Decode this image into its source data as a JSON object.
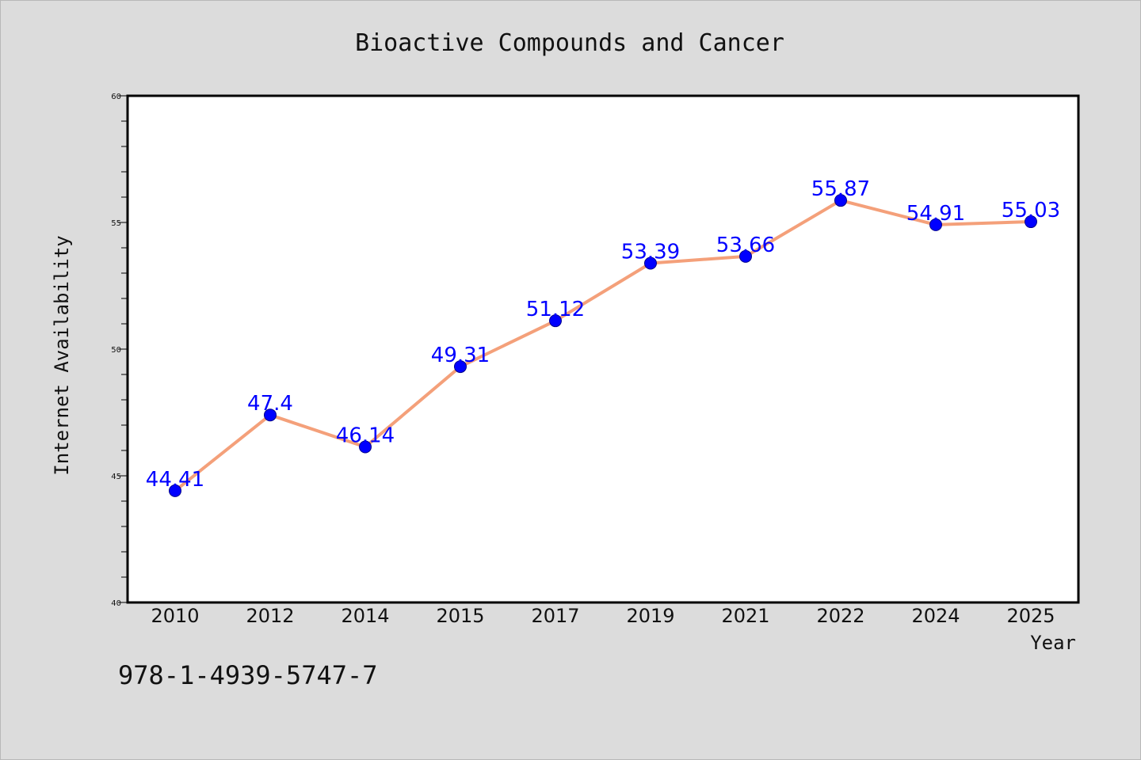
{
  "colors": {
    "background": "#dcdcdc",
    "plot_background": "#ffffff",
    "line": "#f4a07a",
    "marker": "#0000ff",
    "data_label": "#0000ff",
    "axes": "#000000"
  },
  "footer": {
    "text": "978-1-4939-5747-7"
  },
  "chart_data": {
    "type": "line",
    "title": "Bioactive Compounds and Cancer",
    "xlabel": "Year",
    "ylabel": "Internet Availability",
    "categories": [
      "2010",
      "2012",
      "2014",
      "2015",
      "2017",
      "2019",
      "2021",
      "2022",
      "2024",
      "2025"
    ],
    "series": [
      {
        "values": [
          44.41,
          47.4,
          46.14,
          49.31,
          51.12,
          53.39,
          53.66,
          55.87,
          54.91,
          55.03
        ],
        "labels": [
          "44.41",
          "47.4",
          "46.14",
          "49.31",
          "51.12",
          "53.39",
          "53.66",
          "55.87",
          "54.91",
          "55.03"
        ]
      }
    ],
    "ylim": [
      40,
      60
    ],
    "yticks": [
      40,
      45,
      50,
      55,
      60
    ],
    "ytick_labels": [
      "40",
      "45",
      "50",
      "55",
      "60"
    ],
    "grid": false,
    "legend": "none"
  }
}
